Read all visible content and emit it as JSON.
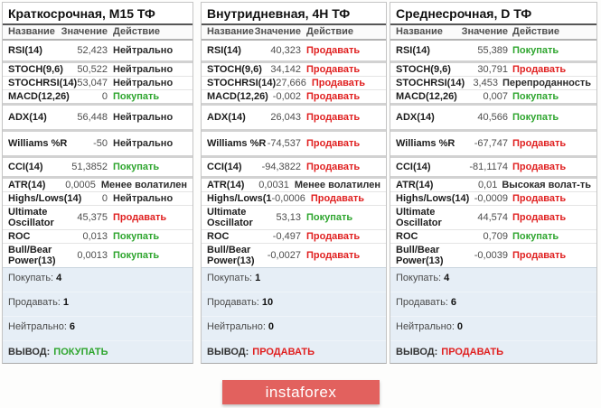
{
  "colors": {
    "buy_green": "#2ea52e",
    "sell_red": "#e02020",
    "summary_bg": "#e6eef6",
    "logo_bg": "#e2615e"
  },
  "logo": {
    "text": "instaforex"
  },
  "columns": [
    {
      "title": "Краткосрочная, M15 ТФ",
      "headers": {
        "name": "Название",
        "value": "Значение",
        "action": "Действие"
      },
      "rows": [
        {
          "name": "RSI(14)",
          "value": "52,423",
          "action": "Нейтрально"
        },
        {
          "name": "STOCH(9,6)",
          "value": "50,522",
          "action": "Нейтрально"
        },
        {
          "name": "STOCHRSI(14)",
          "value": "53,047",
          "action": "Нейтрально"
        },
        {
          "name": "MACD(12,26)",
          "value": "0",
          "action": "Покупать"
        },
        {
          "name": "ADX(14)",
          "value": "56,448",
          "action": "Нейтрально"
        },
        {
          "name": "Williams %R",
          "value": "-50",
          "action": "Нейтрально"
        },
        {
          "name": "CCI(14)",
          "value": "51,3852",
          "action": "Покупать"
        },
        {
          "name": "ATR(14)",
          "value": "0,0005",
          "action": "Менее волатилен"
        },
        {
          "name": "Highs/Lows(14)",
          "value": "0",
          "action": "Нейтрально"
        },
        {
          "name": "Ultimate Oscillator",
          "value": "45,375",
          "action": "Продавать"
        },
        {
          "name": "ROC",
          "value": "0,013",
          "action": "Покупать"
        },
        {
          "name": "Bull/Bear Power(13)",
          "value": "0,0013",
          "action": "Покупать"
        }
      ],
      "summary": {
        "buy_label": "Покупать:",
        "buy_count": "4",
        "sell_label": "Продавать:",
        "sell_count": "1",
        "neutral_label": "Нейтрально:",
        "neutral_count": "6",
        "verdict_label": "ВЫВОД:",
        "verdict": "ПОКУПАТЬ"
      }
    },
    {
      "title": "Внутридневная, 4H ТФ",
      "headers": {
        "name": "Название",
        "value": "Значение",
        "action": "Действие"
      },
      "rows": [
        {
          "name": "RSI(14)",
          "value": "40,323",
          "action": "Продавать"
        },
        {
          "name": "STOCH(9,6)",
          "value": "34,142",
          "action": "Продавать"
        },
        {
          "name": "STOCHRSI(14)",
          "value": "27,666",
          "action": "Продавать"
        },
        {
          "name": "MACD(12,26)",
          "value": "-0,002",
          "action": "Продавать"
        },
        {
          "name": "ADX(14)",
          "value": "26,043",
          "action": "Продавать"
        },
        {
          "name": "Williams %R",
          "value": "-74,537",
          "action": "Продавать"
        },
        {
          "name": "CCI(14)",
          "value": "-94,3822",
          "action": "Продавать"
        },
        {
          "name": "ATR(14)",
          "value": "0,0031",
          "action": "Менее волатилен"
        },
        {
          "name": "Highs/Lows(1",
          "value": "-0,0006",
          "action": "Продавать"
        },
        {
          "name": "Ultimate Oscillator",
          "value": "53,13",
          "action": "Покупать"
        },
        {
          "name": "ROC",
          "value": "-0,497",
          "action": "Продавать"
        },
        {
          "name": "Bull/Bear Power(13)",
          "value": "-0,0027",
          "action": "Продавать"
        }
      ],
      "summary": {
        "buy_label": "Покупать:",
        "buy_count": "1",
        "sell_label": "Продавать:",
        "sell_count": "10",
        "neutral_label": "Нейтрально:",
        "neutral_count": "0",
        "verdict_label": "ВЫВОД:",
        "verdict": "ПРОДАВАТЬ"
      }
    },
    {
      "title": "Среднесрочная, D ТФ",
      "headers": {
        "name": "Название",
        "value": "Значение",
        "action": "Действие"
      },
      "rows": [
        {
          "name": "RSI(14)",
          "value": "55,389",
          "action": "Покупать"
        },
        {
          "name": "STOCH(9,6)",
          "value": "30,791",
          "action": "Продавать"
        },
        {
          "name": "STOCHRSI(14)",
          "value": "3,453",
          "action": "Перепроданность"
        },
        {
          "name": "MACD(12,26)",
          "value": "0,007",
          "action": "Покупать"
        },
        {
          "name": "ADX(14)",
          "value": "40,566",
          "action": "Покупать"
        },
        {
          "name": "Williams %R",
          "value": "-67,747",
          "action": "Продавать"
        },
        {
          "name": "CCI(14)",
          "value": "-81,1174",
          "action": "Продавать"
        },
        {
          "name": "ATR(14)",
          "value": "0,01",
          "action": "Высокая волат-ть"
        },
        {
          "name": "Highs/Lows(14)",
          "value": "-0,0009",
          "action": "Продавать"
        },
        {
          "name": "Ultimate Oscillator",
          "value": "44,574",
          "action": "Продавать"
        },
        {
          "name": "ROC",
          "value": "0,709",
          "action": "Покупать"
        },
        {
          "name": "Bull/Bear Power(13)",
          "value": "-0,0039",
          "action": "Продавать"
        }
      ],
      "summary": {
        "buy_label": "Покупать:",
        "buy_count": "4",
        "sell_label": "Продавать:",
        "sell_count": "6",
        "neutral_label": "Нейтрально:",
        "neutral_count": "0",
        "verdict_label": "ВЫВОД:",
        "verdict": "ПРОДАВАТЬ"
      }
    }
  ]
}
